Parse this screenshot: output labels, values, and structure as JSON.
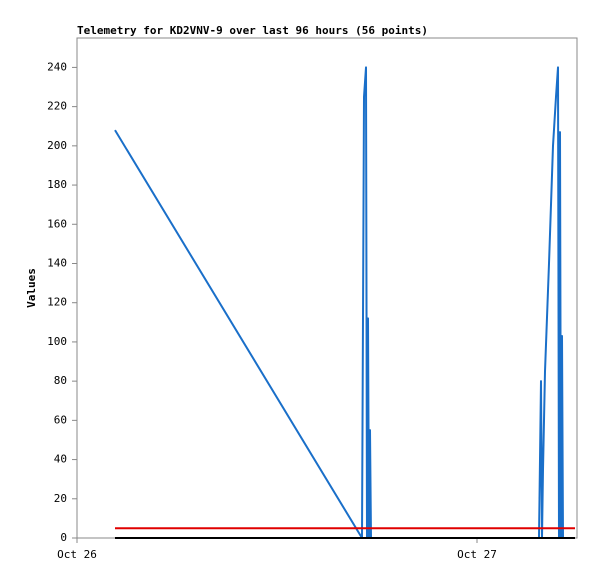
{
  "chart_data": {
    "type": "line",
    "title": "Telemetry for KD2VNV-9 over last 96 hours (56 points)",
    "y_label": "Values",
    "x": [
      2.28,
      17.1,
      17.22,
      17.34,
      17.4,
      17.46,
      17.52,
      17.58,
      17.64,
      27.72,
      27.84,
      27.9,
      27.96,
      28.08,
      28.32,
      28.56,
      28.74,
      28.86,
      28.92,
      28.98,
      29.04,
      29.1,
      29.16,
      29.88
    ],
    "series": [
      {
        "color": "#1a6fc9",
        "values": [
          208,
          0,
          225,
          240,
          0,
          112,
          0,
          55,
          0,
          0,
          80,
          0,
          35,
          85,
          140,
          200,
          225,
          240,
          0,
          207,
          0,
          103,
          0,
          null
        ]
      },
      {
        "color": "#e00000",
        "values": [
          5,
          5,
          5,
          5,
          5,
          5,
          5,
          5,
          5,
          5,
          5,
          5,
          5,
          5,
          5,
          5,
          5,
          5,
          5,
          5,
          5,
          5,
          5,
          5
        ]
      },
      {
        "color": "#000000",
        "values": [
          0,
          0,
          0,
          0,
          0,
          0,
          0,
          0,
          0,
          0,
          0,
          0,
          0,
          0,
          0,
          0,
          0,
          0,
          0,
          0,
          0,
          0,
          0,
          0
        ]
      }
    ],
    "xlim": [
      0,
      30
    ],
    "xticks": [
      {
        "value": 0,
        "label": "Oct 26"
      },
      {
        "value": 24,
        "label": "Oct 27"
      }
    ],
    "ylim": [
      0,
      255
    ],
    "yticks": [
      0,
      20,
      40,
      60,
      80,
      100,
      120,
      140,
      160,
      180,
      200,
      220,
      240
    ],
    "grid": false
  }
}
